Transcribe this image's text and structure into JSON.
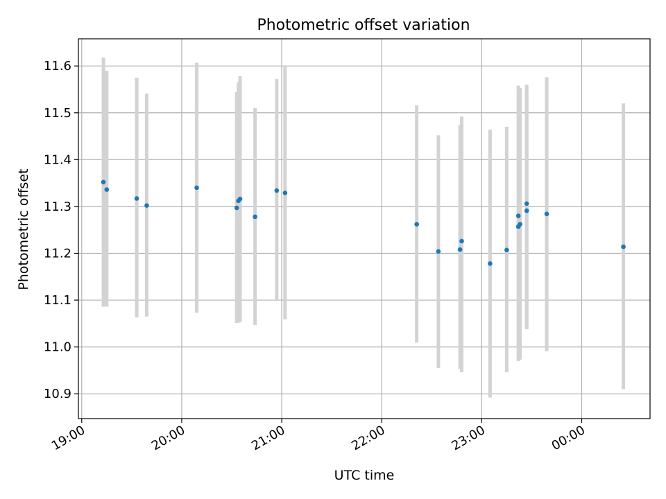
{
  "chart_data": {
    "type": "scatter",
    "title": "Photometric offset variation",
    "xlabel": "UTC time",
    "ylabel": "Photometric offset",
    "x_unit": "UTC time (HH:MM)",
    "xlim": [
      "18:58",
      "00:41"
    ],
    "ylim": [
      10.847,
      11.658
    ],
    "x_ticks": [
      "19:00",
      "20:00",
      "21:00",
      "22:00",
      "23:00",
      "00:00"
    ],
    "y_ticks": [
      "10.9",
      "11.0",
      "11.1",
      "11.2",
      "11.3",
      "11.4",
      "11.5",
      "11.6"
    ],
    "grid": true,
    "point_color": "#1f77b4",
    "errorbar_color": "#d3d3d3",
    "points": [
      {
        "x": "19:13",
        "y": 11.352,
        "ylow": 11.086,
        "yhigh": 11.618
      },
      {
        "x": "19:15",
        "y": 11.336,
        "ylow": 11.086,
        "yhigh": 11.59
      },
      {
        "x": "19:33",
        "y": 11.317,
        "ylow": 11.063,
        "yhigh": 11.575
      },
      {
        "x": "19:39",
        "y": 11.302,
        "ylow": 11.065,
        "yhigh": 11.541
      },
      {
        "x": "20:09",
        "y": 11.34,
        "ylow": 11.073,
        "yhigh": 11.607
      },
      {
        "x": "20:33",
        "y": 11.297,
        "ylow": 11.051,
        "yhigh": 11.544
      },
      {
        "x": "20:34",
        "y": 11.312,
        "ylow": 11.052,
        "yhigh": 11.565
      },
      {
        "x": "20:35",
        "y": 11.316,
        "ylow": 11.053,
        "yhigh": 11.578
      },
      {
        "x": "20:44",
        "y": 11.278,
        "ylow": 11.047,
        "yhigh": 11.51
      },
      {
        "x": "20:57",
        "y": 11.334,
        "ylow": 11.1,
        "yhigh": 11.572
      },
      {
        "x": "21:02",
        "y": 11.329,
        "ylow": 11.059,
        "yhigh": 11.598
      },
      {
        "x": "22:21",
        "y": 11.262,
        "ylow": 11.009,
        "yhigh": 11.516
      },
      {
        "x": "22:34",
        "y": 11.204,
        "ylow": 10.955,
        "yhigh": 11.452
      },
      {
        "x": "22:47",
        "y": 11.208,
        "ylow": 10.953,
        "yhigh": 11.474
      },
      {
        "x": "22:48",
        "y": 11.226,
        "ylow": 10.946,
        "yhigh": 11.492
      },
      {
        "x": "23:05",
        "y": 11.178,
        "ylow": 10.892,
        "yhigh": 11.464
      },
      {
        "x": "23:15",
        "y": 11.207,
        "ylow": 10.946,
        "yhigh": 11.47
      },
      {
        "x": "23:22",
        "y": 11.28,
        "ylow": 10.972,
        "yhigh": 11.558
      },
      {
        "x": "23:22",
        "y": 11.257,
        "ylow": 10.97,
        "yhigh": 11.548
      },
      {
        "x": "23:23",
        "y": 11.262,
        "ylow": 10.973,
        "yhigh": 11.553
      },
      {
        "x": "23:27",
        "y": 11.306,
        "ylow": 11.04,
        "yhigh": 11.56
      },
      {
        "x": "23:27",
        "y": 11.291,
        "ylow": 11.038,
        "yhigh": 11.545
      },
      {
        "x": "23:39",
        "y": 11.284,
        "ylow": 10.991,
        "yhigh": 11.576
      },
      {
        "x": "00:25",
        "y": 11.214,
        "ylow": 10.91,
        "yhigh": 11.52
      }
    ]
  }
}
